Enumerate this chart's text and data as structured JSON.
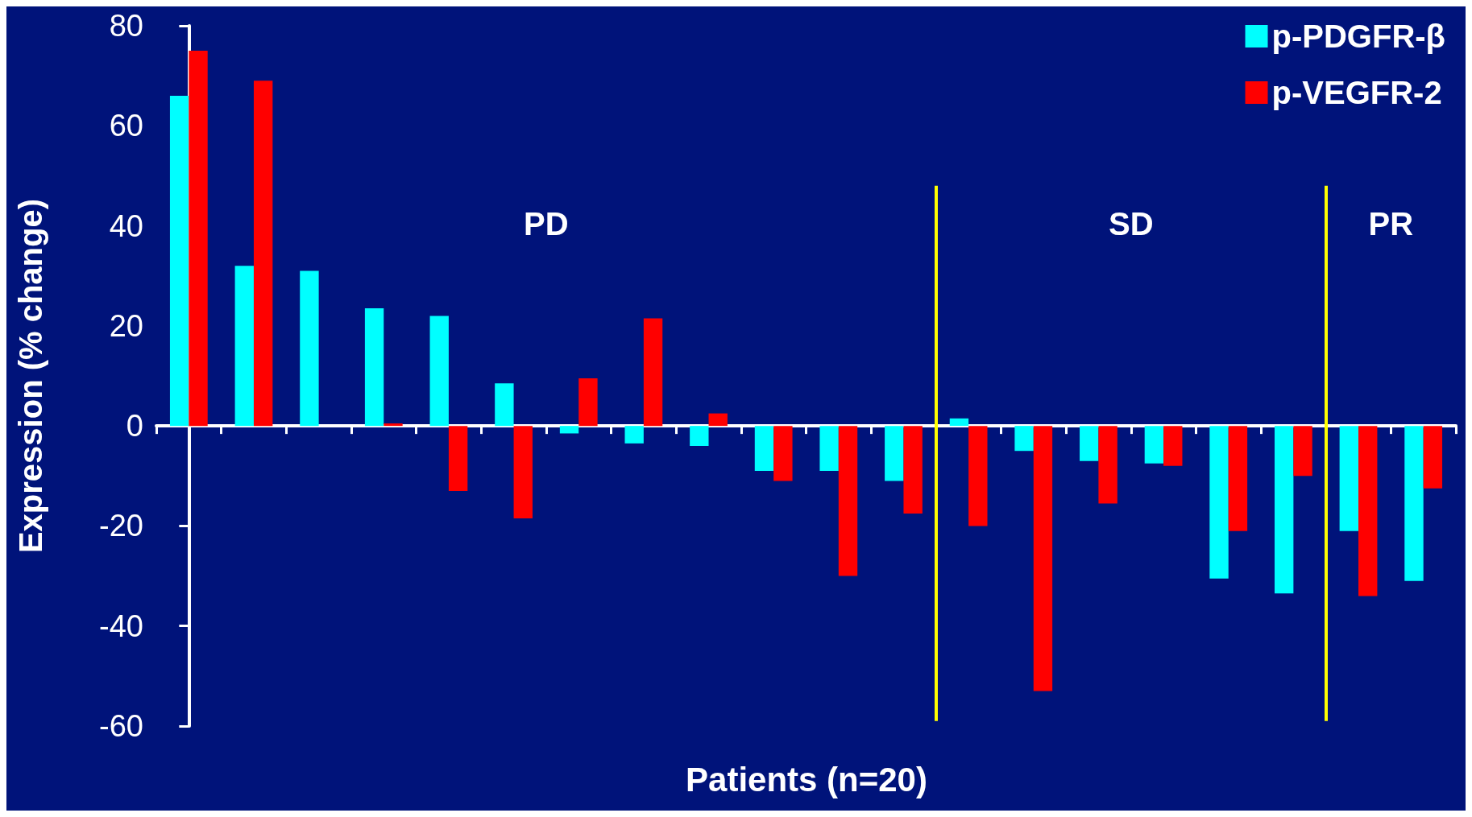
{
  "chart_data": {
    "type": "bar",
    "xlabel": "Patients (n=20)",
    "ylabel": "Expression (% change)",
    "categories": [
      null,
      null,
      null,
      null,
      null,
      null,
      null,
      null,
      null,
      null,
      null,
      null,
      null,
      null,
      null,
      null,
      null,
      null,
      null,
      null
    ],
    "series": [
      {
        "name": "p-PDGFR-β",
        "color": "#00ffff",
        "values": [
          66,
          32,
          31,
          23.5,
          22,
          8.5,
          -1.5,
          -3.5,
          -4,
          -9,
          -9,
          -11,
          1.5,
          -5,
          -7,
          -7.5,
          -30.5,
          -33.5,
          -21,
          -31
        ]
      },
      {
        "name": "p-VEGFR-2",
        "color": "#ff0000",
        "values": [
          75,
          69,
          null,
          0.5,
          -13,
          -18.5,
          9.5,
          21.5,
          2.5,
          -11,
          -30,
          -17.5,
          -20,
          -53,
          -15.5,
          -8,
          -21,
          -10,
          -34,
          -12.5
        ]
      }
    ],
    "ylim": [
      -60,
      80
    ],
    "yticks": [
      -60,
      -40,
      -20,
      0,
      20,
      40,
      60,
      80
    ],
    "annotations": [
      "PD",
      "SD",
      "PR"
    ],
    "grid": false,
    "legend": "top right",
    "tick_labels": "y"
  }
}
